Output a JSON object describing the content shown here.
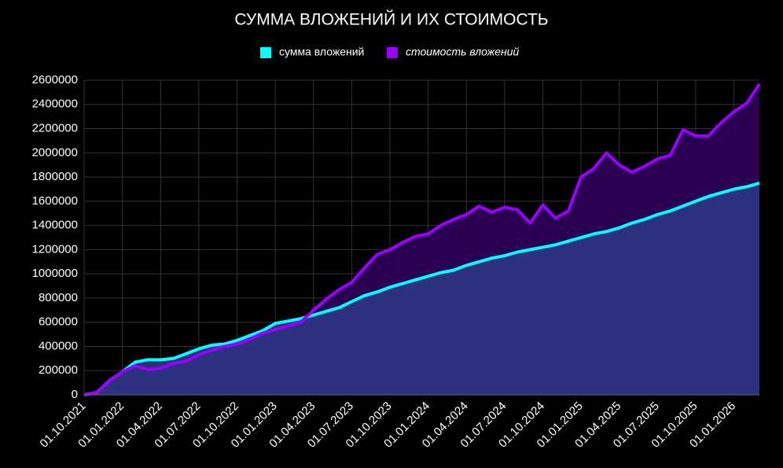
{
  "chart_data": {
    "type": "area-line",
    "title": "СУММА ВЛОЖЕНИЙ И ИХ СТОИМОСТЬ",
    "categories": [
      "01.10.2021",
      null,
      null,
      "01.01.2022",
      null,
      null,
      "01.04.2022",
      null,
      null,
      "01.07.2022",
      null,
      null,
      "01.10.2022",
      null,
      null,
      "01.01.2023",
      null,
      null,
      "01.04.2023",
      null,
      null,
      "01.07.2023",
      null,
      null,
      "01.10.2023",
      null,
      null,
      "01.01.2024",
      null,
      null,
      "01.04.2024",
      null,
      null,
      "01.07.2024",
      null,
      null,
      "01.10.2024",
      null,
      null,
      "01.01.2025",
      null,
      null,
      "01.04.2025",
      null,
      null,
      "01.07.2025",
      null,
      null,
      "01.10.2025",
      null,
      null,
      "01.01.2026",
      null,
      null
    ],
    "series": [
      {
        "name": "сумма вложений",
        "color": "#00ffff",
        "fill": "#2e3a8a",
        "values": [
          0,
          20000,
          120000,
          190000,
          270000,
          290000,
          290000,
          300000,
          340000,
          380000,
          410000,
          420000,
          450000,
          490000,
          530000,
          590000,
          610000,
          630000,
          660000,
          690000,
          720000,
          770000,
          820000,
          850000,
          890000,
          920000,
          950000,
          980000,
          1010000,
          1030000,
          1070000,
          1100000,
          1130000,
          1150000,
          1180000,
          1200000,
          1220000,
          1240000,
          1270000,
          1300000,
          1330000,
          1350000,
          1380000,
          1420000,
          1450000,
          1490000,
          1520000,
          1560000,
          1600000,
          1640000,
          1670000,
          1700000,
          1720000,
          1750000
        ]
      },
      {
        "name": "стоимость вложений",
        "color": "#9900ff",
        "fill": "#2c0052",
        "values": [
          0,
          20000,
          120000,
          190000,
          240000,
          210000,
          220000,
          260000,
          280000,
          330000,
          370000,
          400000,
          420000,
          460000,
          510000,
          540000,
          570000,
          600000,
          700000,
          790000,
          870000,
          930000,
          1050000,
          1160000,
          1200000,
          1260000,
          1310000,
          1330000,
          1400000,
          1450000,
          1490000,
          1560000,
          1510000,
          1550000,
          1530000,
          1420000,
          1570000,
          1460000,
          1520000,
          1800000,
          1870000,
          2000000,
          1900000,
          1840000,
          1890000,
          1950000,
          1980000,
          2190000,
          2140000,
          2140000,
          2250000,
          2340000,
          2410000,
          2570000
        ]
      }
    ],
    "ylim": [
      0,
      2600000
    ],
    "yticks": [
      0,
      200000,
      400000,
      600000,
      800000,
      1000000,
      1200000,
      1400000,
      1600000,
      1800000,
      2000000,
      2200000,
      2400000,
      2600000
    ],
    "grid": true
  }
}
